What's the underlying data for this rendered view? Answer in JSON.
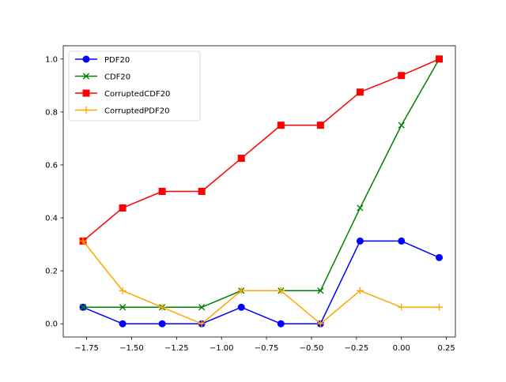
{
  "chart_data": {
    "type": "line",
    "title": "",
    "xlabel": "",
    "ylabel": "",
    "xlim": [
      -1.88,
      0.3
    ],
    "ylim": [
      -0.05,
      1.05
    ],
    "x": [
      -1.77,
      -1.55,
      -1.33,
      -1.11,
      -0.89,
      -0.67,
      -0.45,
      -0.23,
      0.0,
      0.21
    ],
    "xticks": [
      -1.75,
      -1.5,
      -1.25,
      -1.0,
      -0.75,
      -0.5,
      -0.25,
      0.0,
      0.25
    ],
    "xtick_labels": [
      "−1.75",
      "−1.50",
      "−1.25",
      "−1.00",
      "−0.75",
      "−0.50",
      "−0.25",
      "0.00",
      "0.25"
    ],
    "yticks": [
      0.0,
      0.2,
      0.4,
      0.6,
      0.8,
      1.0
    ],
    "ytick_labels": [
      "0.0",
      "0.2",
      "0.4",
      "0.6",
      "0.8",
      "1.0"
    ],
    "grid": false,
    "legend_position": "upper-left",
    "series": [
      {
        "name": "PDF20",
        "color": "#0000ff",
        "marker": "circle",
        "values": [
          0.0625,
          0.0,
          0.0,
          0.0,
          0.0625,
          0.0,
          0.0,
          0.3125,
          0.3125,
          0.25
        ]
      },
      {
        "name": "CDF20",
        "color": "#008000",
        "marker": "x",
        "values": [
          0.0625,
          0.0625,
          0.0625,
          0.0625,
          0.125,
          0.125,
          0.125,
          0.4375,
          0.75,
          1.0
        ]
      },
      {
        "name": "CorruptedCDF20",
        "color": "#ff0000",
        "marker": "square",
        "values": [
          0.3125,
          0.4375,
          0.5,
          0.5,
          0.625,
          0.75,
          0.75,
          0.875,
          0.9375,
          1.0
        ]
      },
      {
        "name": "CorruptedPDF20",
        "color": "#ffa500",
        "marker": "plus",
        "values": [
          0.3125,
          0.125,
          0.0625,
          0.0,
          0.125,
          0.125,
          0.0,
          0.125,
          0.0625,
          0.0625
        ]
      }
    ]
  }
}
